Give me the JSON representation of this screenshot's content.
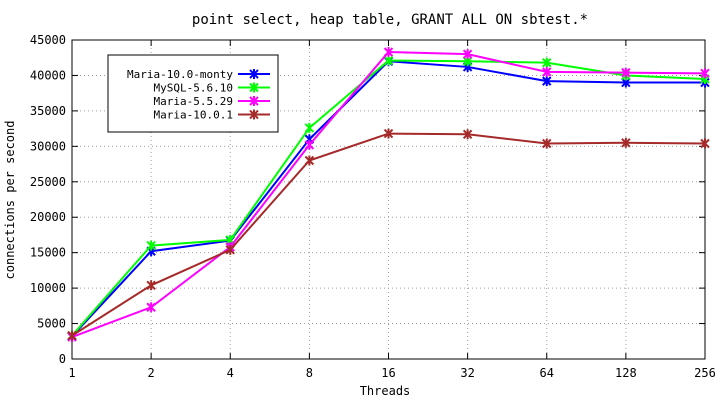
{
  "chart_data": {
    "type": "line",
    "title": "point select, heap table, GRANT ALL ON sbtest.*",
    "xlabel": "Threads",
    "ylabel": "connections per second",
    "categories": [
      "1",
      "2",
      "4",
      "8",
      "16",
      "32",
      "64",
      "128",
      "256"
    ],
    "ylim": [
      0,
      45000
    ],
    "yticks": [
      "0",
      "5000",
      "10000",
      "15000",
      "20000",
      "25000",
      "30000",
      "35000",
      "40000",
      "45000"
    ],
    "legend_position": "top-left",
    "grid": true,
    "series": [
      {
        "name": "Maria-10.0-monty",
        "color": "#0000ff",
        "values": [
          3200,
          15200,
          16700,
          31000,
          42000,
          41200,
          39200,
          39000,
          39000
        ]
      },
      {
        "name": "MySQL-5.6.10",
        "color": "#00ff00",
        "values": [
          3300,
          16000,
          16800,
          32600,
          42100,
          42000,
          41800,
          40000,
          39500
        ]
      },
      {
        "name": "Maria-5.5.29",
        "color": "#ff00ff",
        "values": [
          3100,
          7300,
          15800,
          30200,
          43300,
          43000,
          40500,
          40400,
          40300
        ]
      },
      {
        "name": "Maria-10.0.1",
        "color": "#a52a2a",
        "values": [
          3300,
          10400,
          15400,
          28000,
          31800,
          31700,
          30400,
          30500,
          30400
        ]
      }
    ]
  }
}
